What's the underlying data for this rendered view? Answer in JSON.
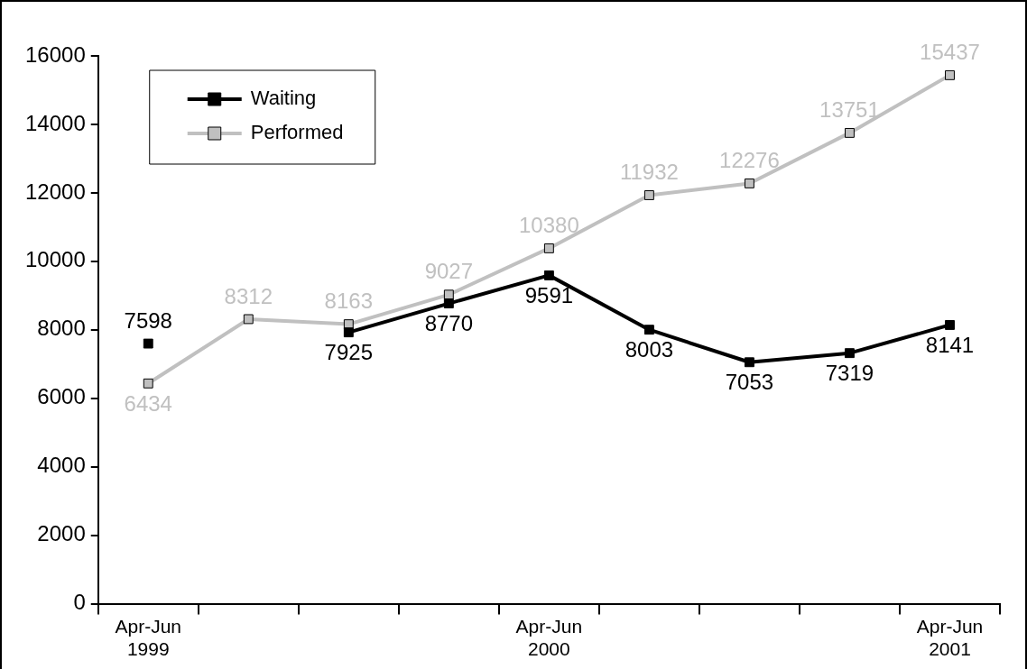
{
  "chart_data": {
    "type": "line",
    "categories": [
      "Apr-Jun 1999",
      null,
      null,
      null,
      "Apr-Jun 2000",
      null,
      null,
      null,
      "Apr-Jun 2001"
    ],
    "series": [
      {
        "name": "Waiting",
        "color": "#000000",
        "values": [
          7598,
          null,
          7925,
          8770,
          9591,
          8003,
          7053,
          7319,
          8141
        ]
      },
      {
        "name": "Performed",
        "color": "#c0c0c0",
        "values": [
          6434,
          8312,
          8163,
          9027,
          10380,
          11932,
          12276,
          13751,
          15437
        ]
      }
    ],
    "ylim": [
      0,
      16000
    ],
    "yticks": [
      0,
      2000,
      4000,
      6000,
      8000,
      10000,
      12000,
      14000,
      16000
    ],
    "grid": false,
    "legend": "top left",
    "marker": "square",
    "line_style": "solid",
    "data_labels": true
  }
}
